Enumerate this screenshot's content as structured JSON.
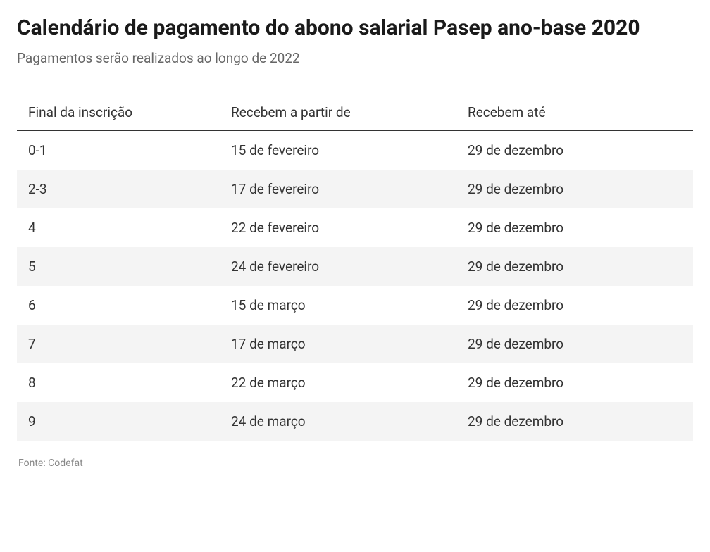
{
  "title": "Calendário de pagamento do abono salarial Pasep ano-base 2020",
  "subtitle": "Pagamentos serão realizados ao longo de 2022",
  "table": {
    "columns": [
      "Final da inscrição",
      "Recebem a partir de",
      "Recebem até"
    ],
    "rows": [
      [
        "0-1",
        "15 de fevereiro",
        "29 de dezembro"
      ],
      [
        "2-3",
        "17 de fevereiro",
        "29 de dezembro"
      ],
      [
        "4",
        "22 de fevereiro",
        "29 de dezembro"
      ],
      [
        "5",
        "24 de fevereiro",
        "29 de dezembro"
      ],
      [
        "6",
        "15 de março",
        "29 de dezembro"
      ],
      [
        "7",
        "17 de março",
        "29 de dezembro"
      ],
      [
        "8",
        "22 de março",
        "29 de dezembro"
      ],
      [
        "9",
        "24 de março",
        "29 de dezembro"
      ]
    ],
    "header_border_color": "#333333",
    "row_even_bg": "#f4f4f4",
    "row_odd_bg": "#ffffff",
    "font_size": 19,
    "text_color": "#333333"
  },
  "source": "Fonte: Codefat",
  "colors": {
    "title_color": "#1a1a1a",
    "subtitle_color": "#666666",
    "source_color": "#888888",
    "background": "#ffffff"
  },
  "typography": {
    "title_fontsize": 30,
    "title_weight": 700,
    "subtitle_fontsize": 19,
    "body_fontsize": 19,
    "source_fontsize": 14
  }
}
